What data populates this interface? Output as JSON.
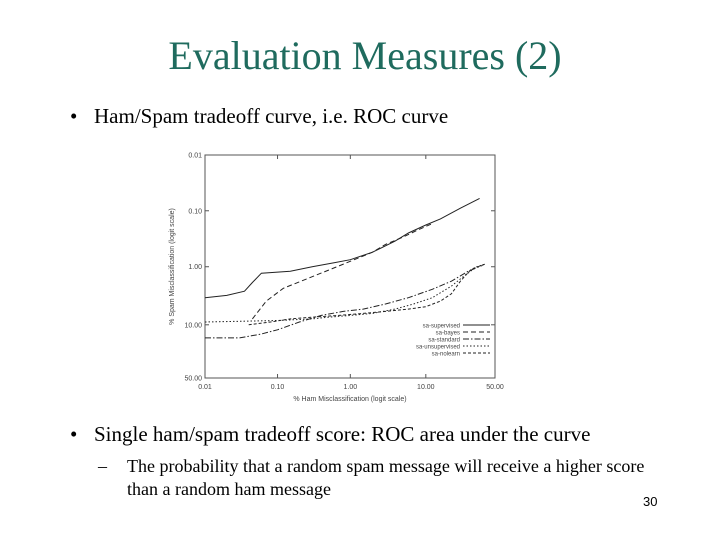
{
  "slide": {
    "title": "Evaluation Measures (2)",
    "bullet1": "Ham/Spam tradeoff curve, i.e. ROC curve",
    "bullet2": "Single ham/spam tradeoff score: ROC area under the curve",
    "sub_line1": "The probability that a random spam message will receive a higher score",
    "sub_line2": "than a random ham message",
    "bullet_marker": "•",
    "dash_marker": "–",
    "page_number": "30",
    "title_color": "#1f6b5e"
  },
  "chart_data": {
    "type": "line",
    "xlabel": "% Ham Misclassification (logit scale)",
    "ylabel": "% Spam Misclassification (logit scale)",
    "xscale": "logit",
    "yscale": "logit",
    "xticks": [
      "0.01",
      "0.10",
      "1.00",
      "10.00",
      "50.00"
    ],
    "yticks": [
      "0.01",
      "0.10",
      "1.00",
      "10.00",
      "50.00"
    ],
    "y_inverted": true,
    "grid": false,
    "legend_position": "bottom-right",
    "series": [
      {
        "name": "sa-supervised",
        "dash": "solid",
        "points": [
          [
            0.01,
            3.5
          ],
          [
            0.02,
            3.2
          ],
          [
            0.035,
            2.7
          ],
          [
            0.045,
            1.9
          ],
          [
            0.06,
            1.3
          ],
          [
            0.15,
            1.2
          ],
          [
            0.3,
            1.0
          ],
          [
            0.6,
            0.85
          ],
          [
            1,
            0.75
          ],
          [
            2,
            0.55
          ],
          [
            4,
            0.35
          ],
          [
            6,
            0.25
          ],
          [
            10,
            0.18
          ],
          [
            15,
            0.14
          ],
          [
            25,
            0.09
          ],
          [
            38,
            0.06
          ]
        ]
      },
      {
        "name": "sa-bayes",
        "dash": "dash",
        "points": [
          [
            0.045,
            8
          ],
          [
            0.07,
            4
          ],
          [
            0.12,
            2.4
          ],
          [
            0.3,
            1.5
          ],
          [
            0.6,
            1.05
          ],
          [
            1,
            0.8
          ],
          [
            2,
            0.55
          ],
          [
            3,
            0.4
          ],
          [
            5,
            0.3
          ],
          [
            8,
            0.22
          ],
          [
            12,
            0.17
          ]
        ]
      },
      {
        "name": "sa-standard",
        "dash": "dash-dot",
        "points": [
          [
            0.01,
            16
          ],
          [
            0.03,
            16
          ],
          [
            0.06,
            14
          ],
          [
            0.1,
            12
          ],
          [
            0.2,
            9
          ],
          [
            0.4,
            7
          ],
          [
            0.8,
            6
          ],
          [
            1.5,
            5.5
          ],
          [
            3,
            4.5
          ],
          [
            6,
            3.5
          ],
          [
            12,
            2.5
          ],
          [
            20,
            1.8
          ],
          [
            30,
            1.2
          ],
          [
            40,
            0.95
          ]
        ]
      },
      {
        "name": "sa-unsupervised",
        "dash": "dot",
        "points": [
          [
            0.01,
            9
          ],
          [
            0.1,
            8.5
          ],
          [
            0.3,
            8
          ],
          [
            0.5,
            7.5
          ],
          [
            1,
            7
          ],
          [
            2,
            6.5
          ],
          [
            4,
            5.5
          ],
          [
            7,
            4.5
          ],
          [
            12,
            3.5
          ],
          [
            20,
            2.2
          ],
          [
            28,
            1.4
          ],
          [
            36,
            1.0
          ],
          [
            42,
            0.9
          ]
        ]
      },
      {
        "name": "sa-nolearn",
        "dash": "fine-dash",
        "points": [
          [
            0.04,
            10
          ],
          [
            0.08,
            9
          ],
          [
            0.15,
            8
          ],
          [
            0.3,
            7.5
          ],
          [
            0.7,
            7
          ],
          [
            1.5,
            6.5
          ],
          [
            3,
            6
          ],
          [
            6,
            5.5
          ],
          [
            10,
            5
          ],
          [
            15,
            4
          ],
          [
            20,
            3
          ],
          [
            25,
            1.8
          ],
          [
            32,
            1.1
          ],
          [
            42,
            0.9
          ]
        ]
      }
    ]
  }
}
